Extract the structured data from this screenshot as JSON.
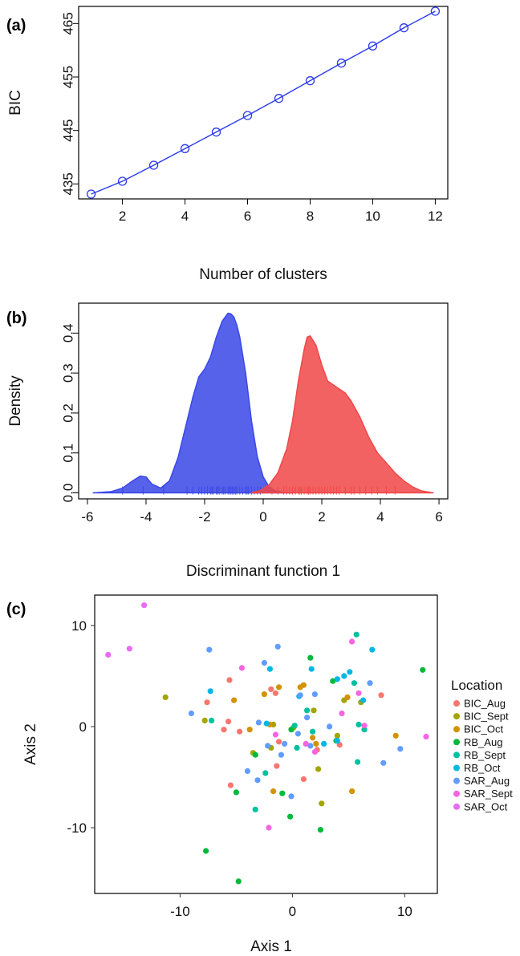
{
  "panels": {
    "a_label": "(a)",
    "b_label": "(b)",
    "c_label": "(c)"
  },
  "chart_data": [
    {
      "type": "line",
      "ylabel": "BIC",
      "xlabel": "Number of clusters",
      "x": [
        1,
        2,
        3,
        4,
        5,
        6,
        7,
        8,
        9,
        10,
        11,
        12
      ],
      "series": [
        {
          "values": [
            433.1,
            435.5,
            438.5,
            441.6,
            444.7,
            447.8,
            451.0,
            454.3,
            457.6,
            460.8,
            464.2,
            467.3
          ],
          "color": "#2b3be8"
        }
      ],
      "xlim": [
        0.6,
        12.4
      ],
      "ylim": [
        432.2,
        468.2
      ],
      "xticks": [
        2,
        4,
        6,
        8,
        10,
        12
      ],
      "yticks": [
        435,
        445,
        455,
        465
      ],
      "grid": false
    },
    {
      "type": "area",
      "ylabel": "Density",
      "xlabel": "Discriminant function 1",
      "xlim": [
        -6.3,
        6.3
      ],
      "ylim": [
        -0.015,
        0.475
      ],
      "xticks": [
        -6,
        -4,
        -2,
        0,
        2,
        4,
        6
      ],
      "yticks": [
        0.0,
        0.1,
        0.2,
        0.3,
        0.4
      ],
      "ytick_labels": [
        "0.0",
        "0.1",
        "0.2",
        "0.3",
        "0.4"
      ],
      "series": [
        {
          "color": "#3a47e8",
          "x": [
            -5.8,
            -5.2,
            -4.8,
            -4.5,
            -4.2,
            -4.0,
            -3.8,
            -3.5,
            -3.2,
            -2.9,
            -2.6,
            -2.4,
            -2.2,
            -2.0,
            -1.8,
            -1.6,
            -1.4,
            -1.2,
            -1.1,
            -1.0,
            -0.9,
            -0.8,
            -0.6,
            -0.4,
            -0.2,
            0.0,
            0.2,
            0.4,
            0.7,
            1.0
          ],
          "values": [
            0.0,
            0.003,
            0.012,
            0.028,
            0.042,
            0.04,
            0.022,
            0.012,
            0.03,
            0.09,
            0.18,
            0.24,
            0.29,
            0.31,
            0.34,
            0.39,
            0.43,
            0.45,
            0.448,
            0.44,
            0.42,
            0.39,
            0.3,
            0.18,
            0.09,
            0.04,
            0.015,
            0.005,
            0.001,
            0.0
          ],
          "rug": [
            -4.8,
            -4.1,
            -3.4,
            -2.6,
            -2.4,
            -2.2,
            -2.1,
            -2.0,
            -1.9,
            -1.8,
            -1.75,
            -1.7,
            -1.6,
            -1.55,
            -1.5,
            -1.4,
            -1.35,
            -1.3,
            -1.2,
            -1.15,
            -1.1,
            -1.05,
            -1.0,
            -0.95,
            -0.9,
            -0.8,
            -0.7,
            -0.6,
            -0.55,
            -0.5,
            -0.4,
            -0.3,
            -0.2,
            -0.1
          ]
        },
        {
          "color": "#f04747",
          "x": [
            -0.4,
            -0.1,
            0.2,
            0.5,
            0.8,
            1.0,
            1.2,
            1.4,
            1.5,
            1.6,
            1.8,
            2.0,
            2.2,
            2.5,
            2.8,
            3.0,
            3.3,
            3.6,
            3.9,
            4.2,
            4.5,
            4.8,
            5.1,
            5.4,
            5.8
          ],
          "values": [
            0.0,
            0.006,
            0.02,
            0.05,
            0.11,
            0.18,
            0.28,
            0.36,
            0.39,
            0.393,
            0.37,
            0.32,
            0.28,
            0.265,
            0.25,
            0.23,
            0.19,
            0.14,
            0.1,
            0.075,
            0.05,
            0.03,
            0.015,
            0.005,
            0.0
          ],
          "rug": [
            0.3,
            0.5,
            0.7,
            0.8,
            0.9,
            1.0,
            1.1,
            1.2,
            1.25,
            1.3,
            1.4,
            1.5,
            1.55,
            1.6,
            1.7,
            1.8,
            1.9,
            2.0,
            2.1,
            2.2,
            2.3,
            2.4,
            2.5,
            2.6,
            2.8,
            3.0,
            3.1,
            3.3,
            3.5,
            3.7,
            3.9,
            4.2,
            4.5
          ]
        }
      ],
      "grid": false
    },
    {
      "type": "scatter",
      "xlabel": "Axis 1",
      "ylabel": "Axis 2",
      "xlim": [
        -17.6,
        12.9
      ],
      "ylim": [
        -16.5,
        13.0
      ],
      "xticks": [
        -10,
        0,
        10
      ],
      "yticks": [
        -10,
        0,
        10
      ],
      "grid": false,
      "legend_title": "Location",
      "legend_position": "right",
      "series": [
        {
          "name": "BIC_Aug",
          "color": "#f8766d",
          "points": [
            [
              -5.6,
              4.6
            ],
            [
              -7.6,
              2.4
            ],
            [
              -5.7,
              0.5
            ],
            [
              -4.7,
              -0.5
            ],
            [
              -6.1,
              -0.3
            ],
            [
              -5.5,
              -5.8
            ],
            [
              -1.9,
              3.7
            ],
            [
              -1.5,
              3.3
            ],
            [
              -1.2,
              -1.5
            ],
            [
              -1.4,
              -3.9
            ],
            [
              1.0,
              -5.2
            ],
            [
              2.2,
              -2.3
            ],
            [
              7.9,
              3.1
            ],
            [
              4.2,
              -1.8
            ]
          ]
        },
        {
          "name": "BIC_Sept",
          "color": "#a3a500",
          "points": [
            [
              -11.3,
              2.9
            ],
            [
              -7.8,
              0.6
            ],
            [
              -3.5,
              -2.6
            ],
            [
              -1.7,
              0.2
            ],
            [
              -1.9,
              -2.1
            ],
            [
              0.1,
              -0.1
            ],
            [
              2.3,
              -4.2
            ],
            [
              2.6,
              -7.6
            ],
            [
              4.6,
              2.6
            ],
            [
              6.1,
              2.4
            ],
            [
              1.9,
              1.6
            ],
            [
              4.0,
              -0.9
            ]
          ]
        },
        {
          "name": "BIC_Oct",
          "color": "#d39200",
          "points": [
            [
              -3.8,
              -0.3
            ],
            [
              -5.2,
              2.6
            ],
            [
              -2.5,
              3.2
            ],
            [
              -1.2,
              3.9
            ],
            [
              -2.0,
              0.2
            ],
            [
              0.7,
              3.9
            ],
            [
              1.0,
              4.1
            ],
            [
              4.9,
              2.9
            ],
            [
              5.3,
              -6.4
            ],
            [
              9.2,
              -0.9
            ],
            [
              -1.7,
              -6.4
            ],
            [
              1.8,
              -1.1
            ],
            [
              2.1,
              -1.7
            ]
          ]
        },
        {
          "name": "RB_Aug",
          "color": "#00ba38",
          "points": [
            [
              -7.7,
              -12.3
            ],
            [
              -4.8,
              -15.3
            ],
            [
              -5.0,
              -6.5
            ],
            [
              -3.3,
              -2.8
            ],
            [
              -0.9,
              -6.6
            ],
            [
              -0.2,
              -8.9
            ],
            [
              2.5,
              -10.2
            ],
            [
              1.6,
              6.8
            ],
            [
              3.6,
              4.5
            ],
            [
              -0.1,
              -0.3
            ],
            [
              11.6,
              5.6
            ],
            [
              3.9,
              -1.4
            ]
          ]
        },
        {
          "name": "RB_Sept",
          "color": "#00c19f",
          "points": [
            [
              -7.2,
              0.6
            ],
            [
              -3.3,
              -8.2
            ],
            [
              -2.4,
              -4.6
            ],
            [
              0.2,
              0.1
            ],
            [
              0.4,
              -2.1
            ],
            [
              1.3,
              1.6
            ],
            [
              1.8,
              -0.5
            ],
            [
              5.7,
              9.1
            ],
            [
              5.5,
              4.3
            ],
            [
              5.9,
              0.2
            ],
            [
              6.4,
              -0.3
            ],
            [
              5.8,
              -3.5
            ]
          ]
        },
        {
          "name": "RB_Oct",
          "color": "#00b9e3",
          "points": [
            [
              -7.3,
              3.5
            ],
            [
              -2.3,
              0.3
            ],
            [
              -2.0,
              5.7
            ],
            [
              0.6,
              3.0
            ],
            [
              1.7,
              5.7
            ],
            [
              4.0,
              4.7
            ],
            [
              4.6,
              5.0
            ],
            [
              5.1,
              5.4
            ],
            [
              6.3,
              2.6
            ],
            [
              7.1,
              7.6
            ],
            [
              2.8,
              -1.7
            ],
            [
              4.0,
              -1.4
            ]
          ]
        },
        {
          "name": "SAR_Aug",
          "color": "#619cff",
          "points": [
            [
              -9.0,
              1.3
            ],
            [
              -7.4,
              7.6
            ],
            [
              -2.5,
              6.3
            ],
            [
              -1.3,
              7.9
            ],
            [
              0.7,
              3.1
            ],
            [
              -0.1,
              -6.9
            ],
            [
              -3.1,
              -5.3
            ],
            [
              -2.2,
              -1.9
            ],
            [
              -0.7,
              -1.7
            ],
            [
              1.3,
              0.9
            ],
            [
              2.0,
              3.2
            ],
            [
              6.9,
              4.3
            ],
            [
              8.1,
              -3.6
            ],
            [
              9.6,
              -2.2
            ],
            [
              -4.0,
              -4.4
            ],
            [
              -3.0,
              0.4
            ],
            [
              -1.0,
              -2.8
            ],
            [
              0.5,
              -0.7
            ],
            [
              1.6,
              -1.9
            ],
            [
              3.3,
              0.0
            ]
          ]
        },
        {
          "name": "SAR_Sept",
          "color": "#f564e3",
          "points": [
            [
              -4.5,
              5.8
            ],
            [
              -2.1,
              -10.0
            ],
            [
              1.2,
              -1.7
            ],
            [
              5.3,
              8.4
            ],
            [
              5.9,
              3.3
            ],
            [
              6.4,
              0.1
            ],
            [
              11.9,
              -1.0
            ],
            [
              -1.5,
              -0.8
            ],
            [
              2.0,
              -2.5
            ],
            [
              4.4,
              1.3
            ]
          ]
        },
        {
          "name": "SAR_Oct",
          "color": "#e76bf3",
          "points": [
            [
              -16.4,
              7.1
            ],
            [
              -14.5,
              7.7
            ],
            [
              -13.2,
              12.0
            ]
          ]
        }
      ]
    }
  ]
}
